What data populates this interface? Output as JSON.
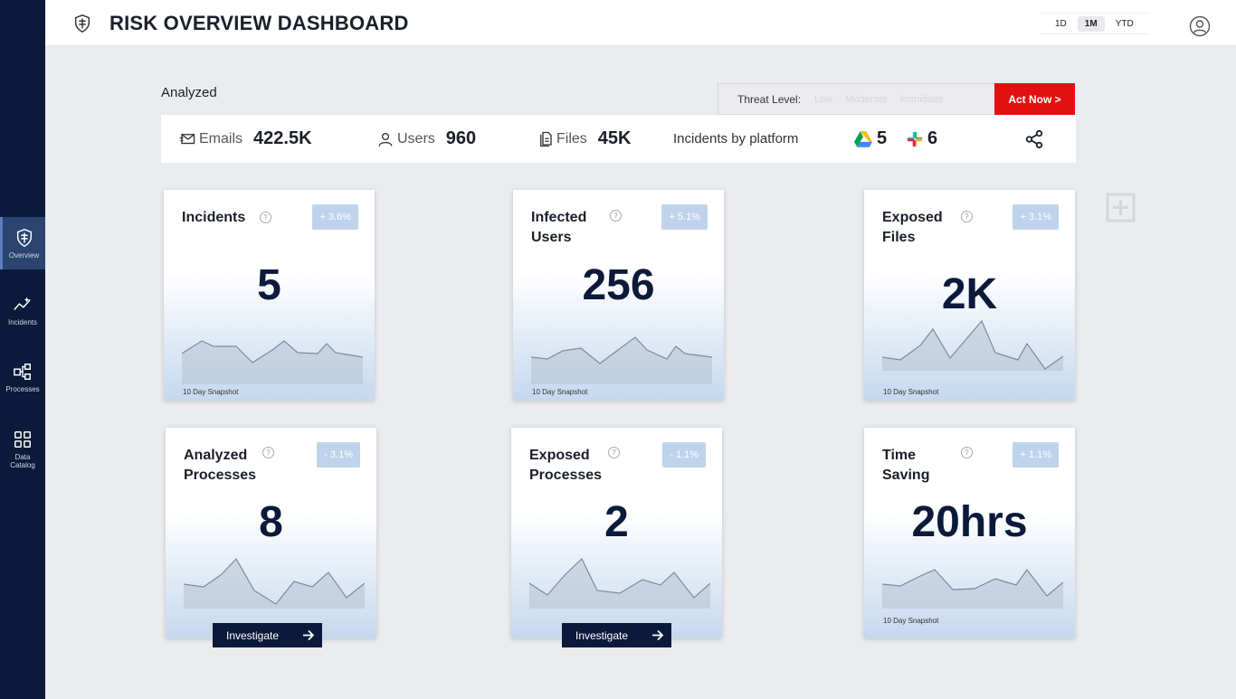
{
  "header": {
    "title": "RISK OVERVIEW DASHBOARD",
    "ranges": [
      "1D",
      "1M",
      "YTD"
    ],
    "selected_range": "1M"
  },
  "sidebar": {
    "items": [
      {
        "label": "Overview",
        "icon": "shield-icon",
        "active": true
      },
      {
        "label": "Incidents",
        "icon": "trend-icon",
        "active": false
      },
      {
        "label": "Processes",
        "icon": "processes-icon",
        "active": false
      },
      {
        "label": "Data Catalog",
        "icon": "grid-icon",
        "active": false
      }
    ]
  },
  "analyzed": {
    "title": "Analyzed",
    "threat_label": "Threat Level:",
    "threat_levels": [
      "Low",
      "Moderate",
      "Immidiate"
    ],
    "act_now": "Act Now  >",
    "stats": {
      "emails_label": "Emails",
      "emails_value": "422.5K",
      "users_label": "Users",
      "users_value": "960",
      "files_label": "Files",
      "files_value": "45K",
      "platform_label": "Incidents by platform",
      "gdrive_value": "5",
      "slack_value": "6"
    }
  },
  "cards": [
    {
      "title": "Incidents",
      "badge": "+ 3.6%",
      "value": "5",
      "snapshot": "10 Day Snapshot"
    },
    {
      "title": "Infected Users",
      "badge": "+ 5.1%",
      "value": "256",
      "snapshot": "10 Day Snapshot"
    },
    {
      "title": "Exposed Files",
      "badge": "+ 3.1%",
      "value": "2K",
      "snapshot": "10 Day Snapshot"
    },
    {
      "title": "Analyzed Processes",
      "badge": "- 3.1%",
      "value": "8",
      "button": "Investigate"
    },
    {
      "title": "Exposed Processes",
      "badge": "- 1.1%",
      "value": "2",
      "button": "Investigate"
    },
    {
      "title": "Time Saving",
      "badge": "+ 1.1%",
      "value": "20hrs",
      "snapshot": "10 Day Snapshot"
    }
  ],
  "colors": {
    "navy": "#0b1a3a",
    "act_red": "#e21111",
    "badge_blue": "#bfd4ec"
  }
}
